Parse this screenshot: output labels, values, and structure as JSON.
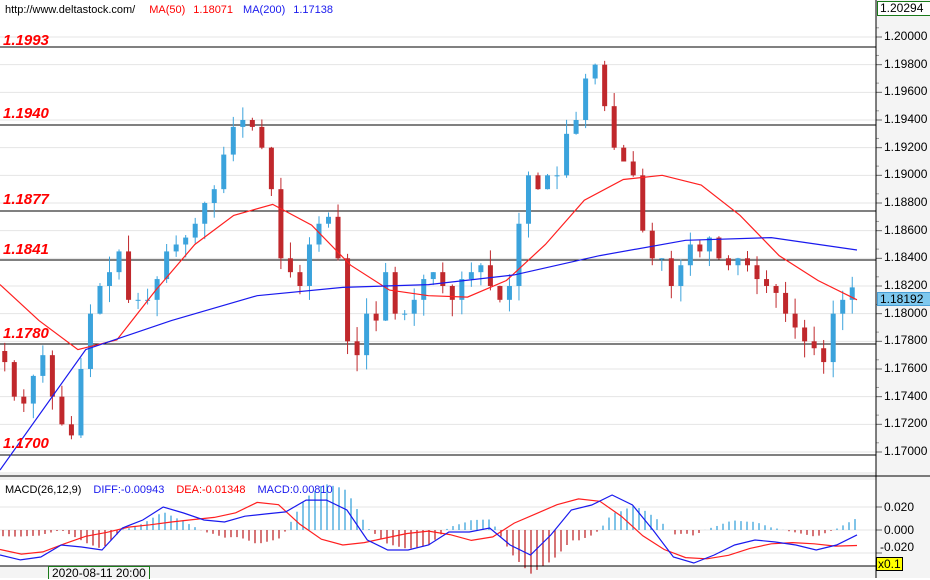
{
  "header": {
    "url": "http://www.deltastock.com/",
    "ma50_label": "MA(50)",
    "ma50_value": "1.18071",
    "ma200_label": "MA(200)",
    "ma200_value": "1.17138"
  },
  "price_axis": {
    "top_value": "1.20294",
    "current_price": "1.18192",
    "ticks": [
      "1.20000",
      "1.19800",
      "1.19600",
      "1.19400",
      "1.19200",
      "1.19000",
      "1.18800",
      "1.18600",
      "1.18400",
      "1.18200",
      "1.18000",
      "1.17800",
      "1.17600",
      "1.17400",
      "1.17200",
      "1.17000"
    ]
  },
  "levels": [
    "1.1993",
    "1.1940",
    "1.1877",
    "1.1841",
    "1.1780",
    "1.1700"
  ],
  "macd": {
    "label": "MACD(26,12,9)",
    "diff": "DIFF:-0.00943",
    "dea": "DEA:-0.01348",
    "macd": "MACD:0.00810",
    "ticks": [
      "0.020",
      "0.000",
      "-0.020"
    ],
    "scale": "x0.1"
  },
  "time_axis": {
    "cursor_label": "2020-08-11 20:00"
  },
  "colors": {
    "up": "#3ba3dc",
    "down": "#c0282c",
    "ma50": "#ff2020",
    "ma200": "#1a1aee",
    "level": "#ff0000"
  },
  "chart_data": {
    "type": "candlestick",
    "ylim": [
      1.1685,
      1.2029
    ],
    "closes": [
      1.1765,
      1.174,
      1.1735,
      1.1755,
      1.177,
      1.174,
      1.172,
      1.1712,
      1.176,
      1.18,
      1.182,
      1.183,
      1.1845,
      1.181,
      1.181,
      1.181,
      1.1825,
      1.1845,
      1.185,
      1.1855,
      1.1865,
      1.188,
      1.189,
      1.1915,
      1.1935,
      1.194,
      1.1935,
      1.192,
      1.189,
      1.184,
      1.183,
      1.182,
      1.185,
      1.1865,
      1.187,
      1.184,
      1.178,
      1.177,
      1.18,
      1.1795,
      1.183,
      1.18,
      1.18,
      1.181,
      1.1825,
      1.183,
      1.182,
      1.181,
      1.1825,
      1.183,
      1.1835,
      1.182,
      1.181,
      1.182,
      1.1865,
      1.19,
      1.189,
      1.19,
      1.19,
      1.193,
      1.194,
      1.197,
      1.198,
      1.195,
      1.192,
      1.191,
      1.19,
      1.186,
      1.184,
      1.184,
      1.182,
      1.1835,
      1.185,
      1.1845,
      1.1855,
      1.184,
      1.1835,
      1.184,
      1.1835,
      1.1825,
      1.182,
      1.1815,
      1.18,
      1.179,
      1.178,
      1.1775,
      1.1765,
      1.18,
      1.181,
      1.1819
    ],
    "ma50": [
      1.1821,
      1.1795,
      1.1774,
      1.1781,
      1.1817,
      1.185,
      1.1871,
      1.1879,
      1.1864,
      1.1835,
      1.1817,
      1.1813,
      1.1812,
      1.1824,
      1.185,
      1.1882,
      1.1897,
      1.19,
      1.1893,
      1.1871,
      1.1842,
      1.1824,
      1.181
    ],
    "ma200": [
      1.1687,
      1.1774,
      1.1795,
      1.1813,
      1.1819,
      1.1821,
      1.1828,
      1.1842,
      1.1853,
      1.1855,
      1.1846
    ],
    "diff": [
      -0.0217,
      -0.026,
      -0.0235,
      -0.013,
      -0.0148,
      -0.0174,
      0.0017,
      0.0087,
      0.02,
      0.0148,
      0.0087,
      0.007,
      0.012,
      0.0139,
      0.0157,
      0.026,
      0.026,
      0.0174,
      -0.0087,
      -0.0174,
      -0.0174,
      -0.013,
      -0.0017,
      -0.0017,
      0.0017,
      -0.013,
      -0.0217,
      -0.0043,
      0.0174,
      0.0217,
      0.0304,
      0.0217,
      0,
      -0.0235,
      -0.0287,
      -0.0217,
      -0.013,
      -0.0087,
      -0.0104,
      -0.013,
      -0.0174,
      -0.013,
      -0.0043
    ],
    "dea": [
      -0.017,
      -0.021,
      -0.019,
      -0.012,
      -0.0055,
      -0.002,
      0.0025,
      0.0045,
      0.007,
      0.009,
      0.011,
      0.015,
      0.024,
      0.022,
      0.005,
      -0.008,
      -0.013,
      -0.011,
      -0.007,
      -0.003,
      -0.001,
      -0.004,
      -0.009,
      -0.006,
      0.006,
      0.014,
      0.022,
      0.027,
      0.025,
      0.012,
      -0.005,
      -0.017,
      -0.024,
      -0.025,
      -0.022,
      -0.016,
      -0.012,
      -0.011,
      -0.012,
      -0.014,
      -0.0135
    ]
  }
}
